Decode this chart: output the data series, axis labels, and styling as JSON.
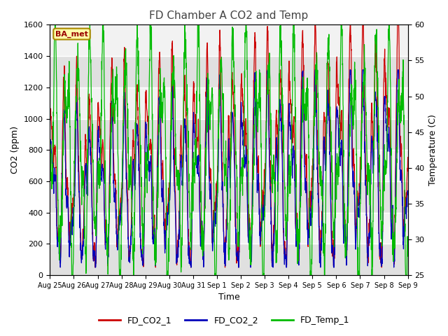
{
  "title": "FD Chamber A CO2 and Temp",
  "xlabel": "Time",
  "ylabel_left": "CO2 (ppm)",
  "ylabel_right": "Temperature (C)",
  "ylim_left": [
    0,
    1600
  ],
  "ylim_right": [
    25,
    60
  ],
  "yticks_left": [
    0,
    200,
    400,
    600,
    800,
    1000,
    1200,
    1400,
    1600
  ],
  "yticks_right": [
    25,
    30,
    35,
    40,
    45,
    50,
    55,
    60
  ],
  "xtick_labels": [
    "Aug 25",
    "Aug 26",
    "Aug 27",
    "Aug 28",
    "Aug 29",
    "Aug 30",
    "Aug 31",
    "Sep 1",
    "Sep 2",
    "Sep 3",
    "Sep 4",
    "Sep 5",
    "Sep 6",
    "Sep 7",
    "Sep 8",
    "Sep 9"
  ],
  "colors": {
    "co2_1": "#cc0000",
    "co2_2": "#0000bb",
    "temp": "#00bb00"
  },
  "legend_labels": [
    "FD_CO2_1",
    "FD_CO2_2",
    "FD_Temp_1"
  ],
  "annotation_text": "BA_met",
  "annotation_bg": "#ffffaa",
  "annotation_border": "#aa8800",
  "plot_bg_light": "#f2f2f2",
  "plot_bg_dark": "#e0e0e0",
  "n_points": 2000,
  "n_days": 15
}
